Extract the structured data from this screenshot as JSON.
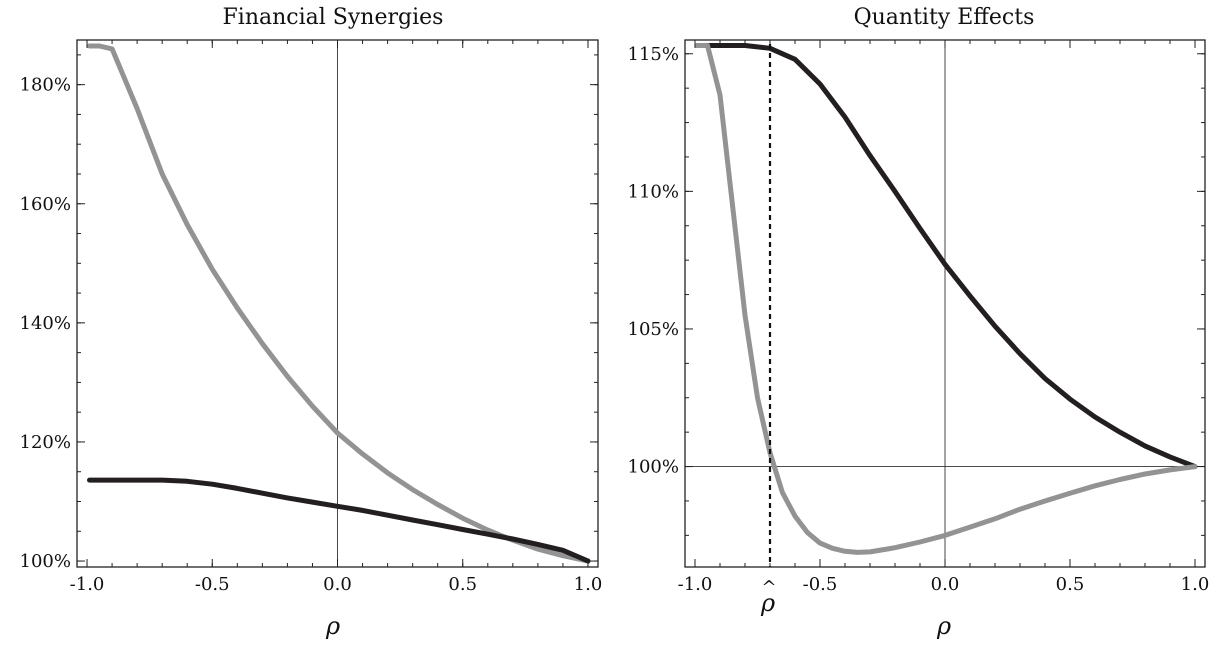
{
  "colors": {
    "dark": "#231f20",
    "light": "#939393"
  },
  "chart_data": [
    {
      "type": "line",
      "title": "Financial Synergies",
      "xlabel": "ρ",
      "ylabel": "",
      "xlim": [
        -1.04,
        1.04
      ],
      "ylim": [
        0.99,
        1.875
      ],
      "xticks": [
        "-1.0",
        "-0.5",
        "0.0",
        "0.5",
        "1.0"
      ],
      "xtick_values": [
        -1.0,
        -0.5,
        0.0,
        0.5,
        1.0
      ],
      "yticks": [
        "100%",
        "120%",
        "140%",
        "160%",
        "180%"
      ],
      "ytick_values": [
        1.0,
        1.2,
        1.4,
        1.6,
        1.8
      ],
      "vlines": [
        0.0
      ],
      "hlines": [],
      "series": [
        {
          "color": "#939393",
          "x": [
            -0.99,
            -0.95,
            -0.9,
            -0.85,
            -0.8,
            -0.75,
            -0.7,
            -0.6,
            -0.5,
            -0.4,
            -0.3,
            -0.2,
            -0.1,
            0.0,
            0.1,
            0.2,
            0.3,
            0.4,
            0.5,
            0.6,
            0.7,
            0.8,
            0.9,
            1.0
          ],
          "y": [
            1.865,
            1.865,
            1.86,
            1.81,
            1.76,
            1.705,
            1.65,
            1.565,
            1.49,
            1.425,
            1.365,
            1.31,
            1.26,
            1.215,
            1.18,
            1.148,
            1.12,
            1.095,
            1.072,
            1.052,
            1.035,
            1.02,
            1.009,
            1.0
          ]
        },
        {
          "color": "#231f20",
          "x": [
            -0.99,
            -0.9,
            -0.8,
            -0.7,
            -0.6,
            -0.5,
            -0.4,
            -0.3,
            -0.2,
            -0.1,
            0.0,
            0.1,
            0.2,
            0.3,
            0.4,
            0.5,
            0.6,
            0.7,
            0.8,
            0.9,
            1.0
          ],
          "y": [
            1.136,
            1.136,
            1.136,
            1.136,
            1.134,
            1.129,
            1.122,
            1.114,
            1.106,
            1.099,
            1.092,
            1.085,
            1.077,
            1.069,
            1.061,
            1.053,
            1.045,
            1.037,
            1.028,
            1.018,
            1.0
          ]
        }
      ]
    },
    {
      "type": "line",
      "title": "Quantity Effects",
      "xlabel": "ρ",
      "ylabel": "",
      "xlim": [
        -1.04,
        1.04
      ],
      "ylim": [
        0.9635,
        1.155
      ],
      "xticks": [
        "-1.0",
        "-0.5",
        "0.0",
        "0.5",
        "1.0"
      ],
      "xtick_values": [
        -1.0,
        -0.5,
        0.0,
        0.5,
        1.0
      ],
      "yticks": [
        "100%",
        "105%",
        "110%",
        "115%"
      ],
      "ytick_values": [
        1.0,
        1.05,
        1.1,
        1.15
      ],
      "vlines": [
        0.0
      ],
      "hlines": [
        1.0
      ],
      "annotation": {
        "label": "ρ",
        "accent": "^",
        "x": -0.7
      },
      "series": [
        {
          "color": "#231f20",
          "x": [
            -0.99,
            -0.9,
            -0.8,
            -0.7,
            -0.6,
            -0.5,
            -0.4,
            -0.3,
            -0.2,
            -0.1,
            0.0,
            0.1,
            0.2,
            0.3,
            0.4,
            0.5,
            0.6,
            0.7,
            0.8,
            0.9,
            1.0
          ],
          "y": [
            1.153,
            1.153,
            1.153,
            1.152,
            1.148,
            1.139,
            1.127,
            1.113,
            1.1,
            1.0865,
            1.0735,
            1.062,
            1.051,
            1.041,
            1.032,
            1.0245,
            1.018,
            1.0125,
            1.0075,
            1.0035,
            1.0
          ]
        },
        {
          "color": "#939393",
          "x": [
            -0.99,
            -0.95,
            -0.9,
            -0.85,
            -0.8,
            -0.75,
            -0.7,
            -0.65,
            -0.6,
            -0.55,
            -0.5,
            -0.45,
            -0.4,
            -0.35,
            -0.3,
            -0.2,
            -0.1,
            0.0,
            0.1,
            0.2,
            0.3,
            0.4,
            0.5,
            0.6,
            0.7,
            0.8,
            0.9,
            1.0
          ],
          "y": [
            1.153,
            1.153,
            1.135,
            1.095,
            1.055,
            1.025,
            1.005,
            0.9905,
            0.982,
            0.976,
            0.9722,
            0.9703,
            0.9692,
            0.9688,
            0.969,
            0.9705,
            0.9726,
            0.975,
            0.978,
            0.981,
            0.9845,
            0.9875,
            0.9903,
            0.993,
            0.9953,
            0.9973,
            0.9988,
            1.0
          ]
        }
      ]
    }
  ]
}
